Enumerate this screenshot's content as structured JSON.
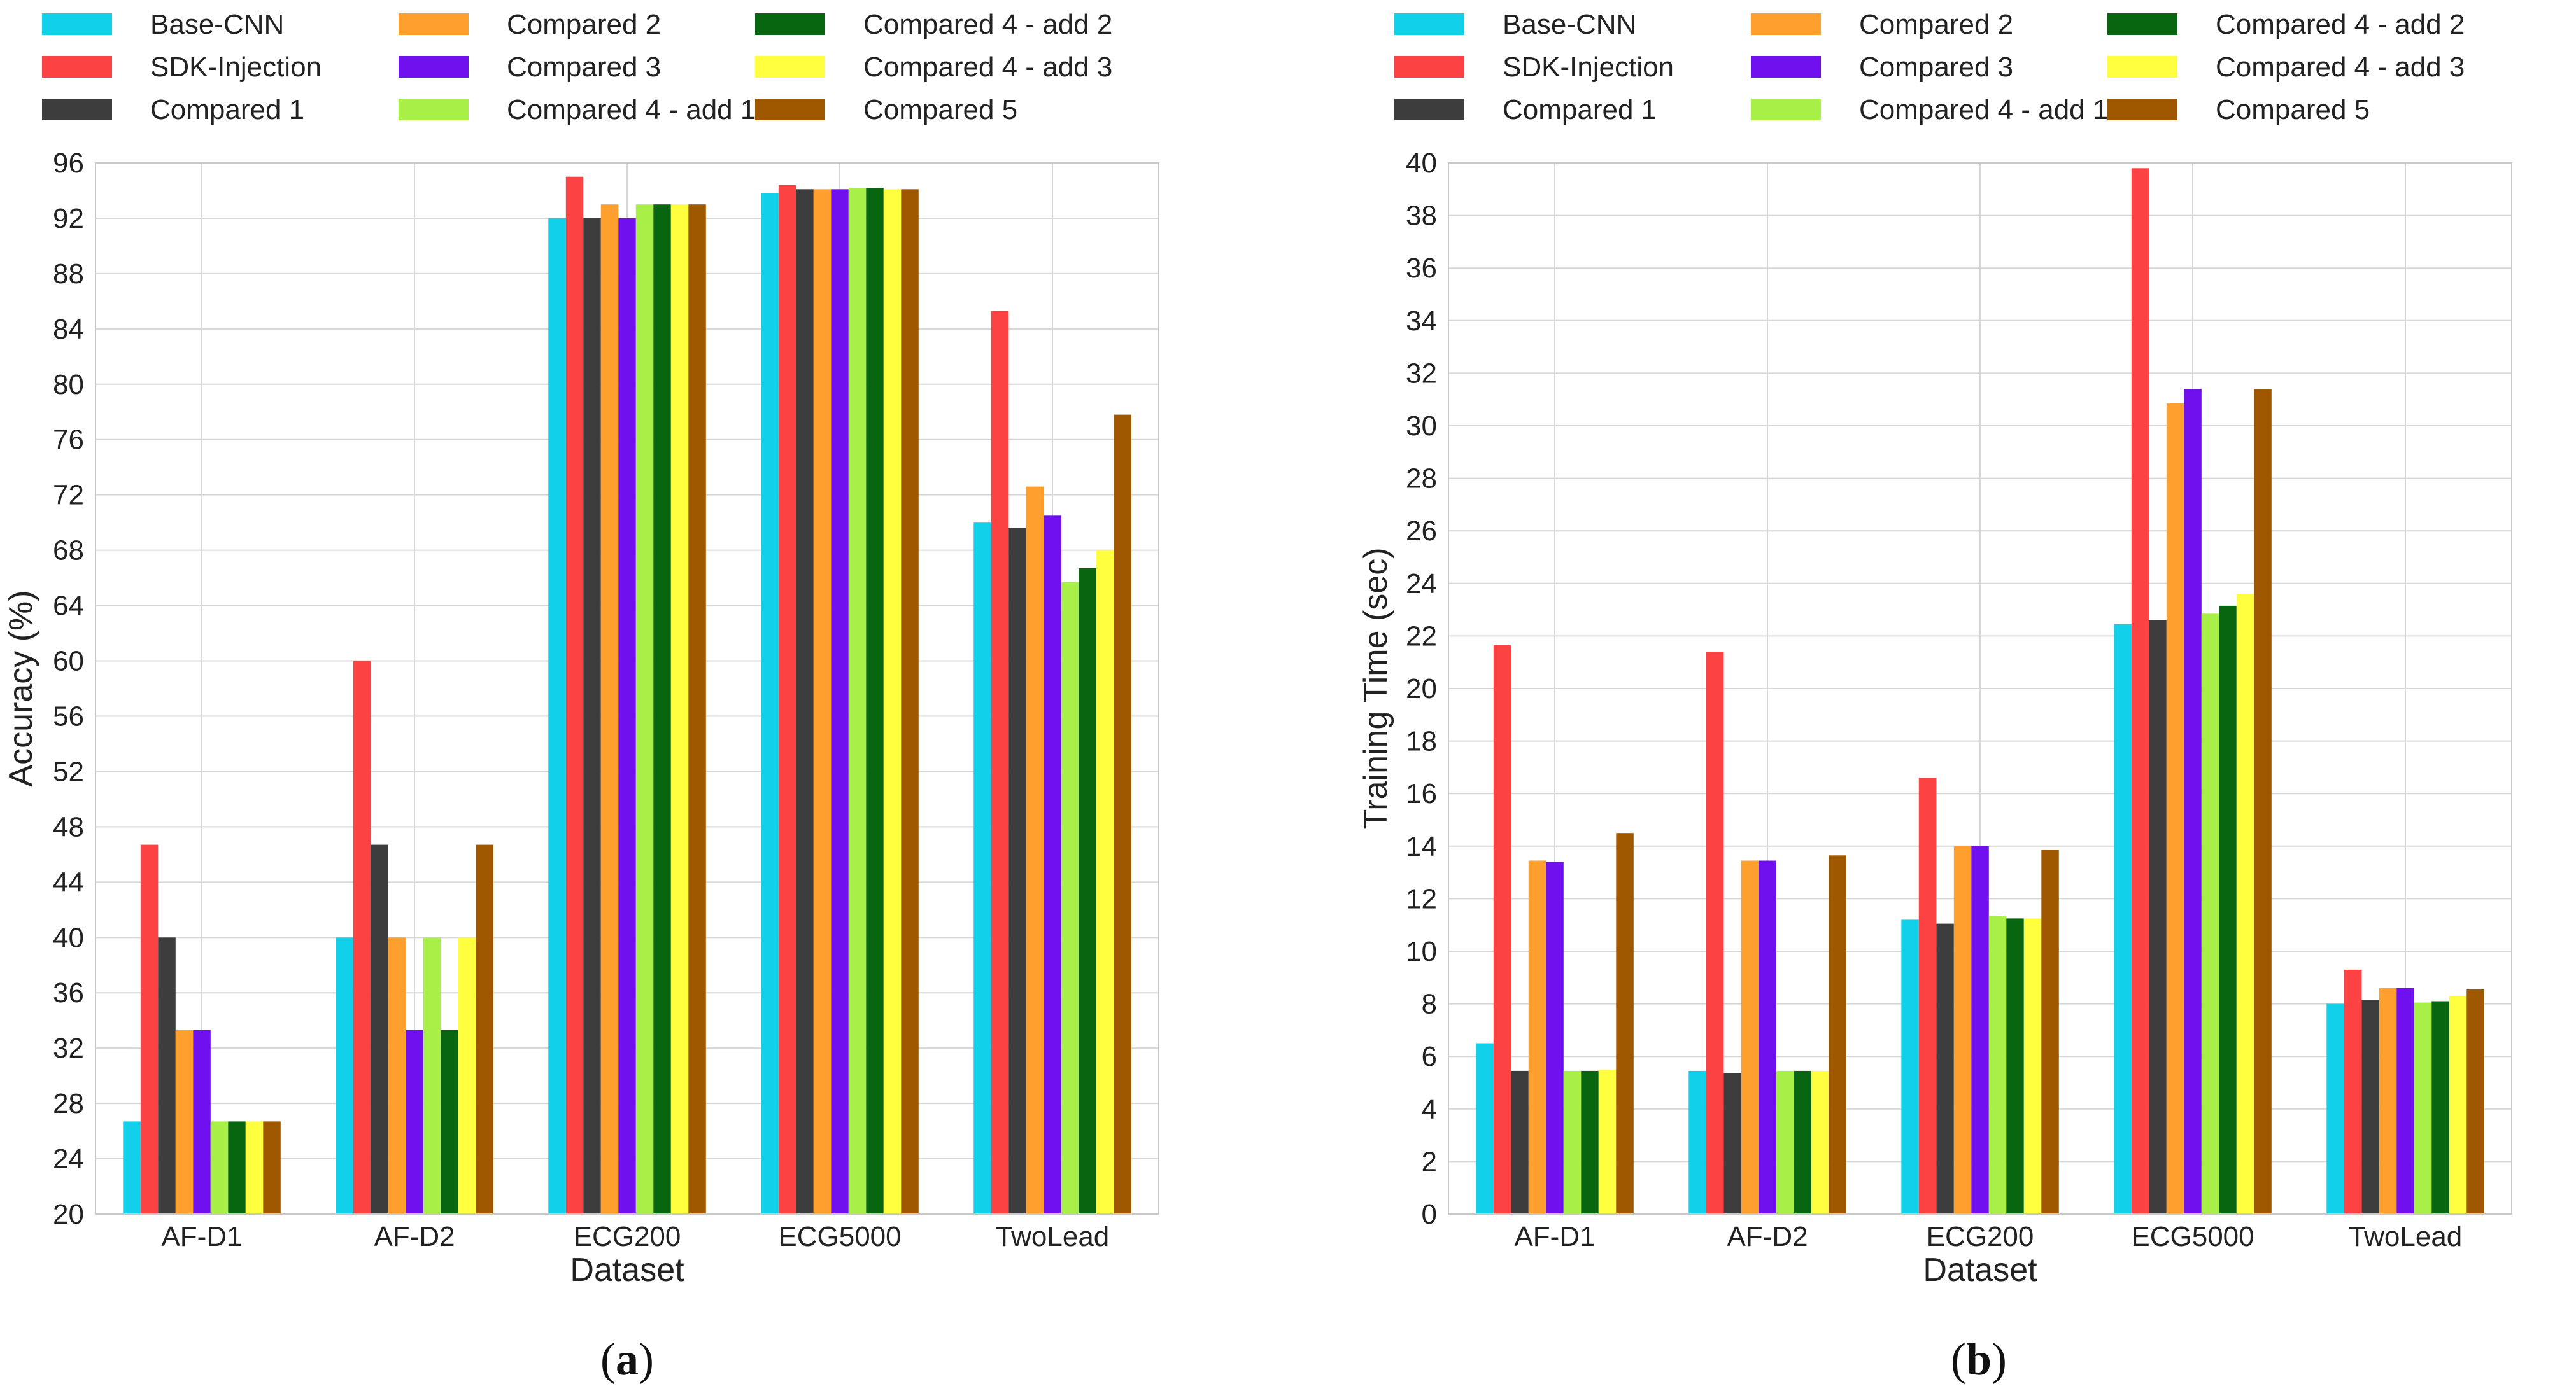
{
  "legend": [
    {
      "name": "Base-CNN",
      "color": "#11d0ea"
    },
    {
      "name": "SDK-Injection",
      "color": "#fc4242"
    },
    {
      "name": "Compared 1",
      "color": "#3d3d3d"
    },
    {
      "name": "Compared 2",
      "color": "#ff9f2e"
    },
    {
      "name": "Compared 3",
      "color": "#7010ef"
    },
    {
      "name": "Compared 4 - add 1",
      "color": "#a8f048"
    },
    {
      "name": "Compared 4 - add 2",
      "color": "#086610"
    },
    {
      "name": "Compared 4 - add 3",
      "color": "#ffff40"
    },
    {
      "name": "Compared 5",
      "color": "#a05800"
    }
  ],
  "chart_data": [
    {
      "type": "bar",
      "panel_label": "a",
      "xlabel": "Dataset",
      "ylabel": "Accuracy (%)",
      "ylim": [
        20,
        96
      ],
      "yticks": [
        20,
        24,
        28,
        32,
        36,
        40,
        44,
        48,
        52,
        56,
        60,
        64,
        68,
        72,
        76,
        80,
        84,
        88,
        92,
        96
      ],
      "grid": true,
      "legend_position": "top",
      "categories": [
        "AF-D1",
        "AF-D2",
        "ECG200",
        "ECG5000",
        "TwoLead"
      ],
      "series": [
        {
          "name": "Base-CNN",
          "values": [
            26.7,
            40.0,
            92.0,
            93.8,
            70.0
          ]
        },
        {
          "name": "SDK-Injection",
          "values": [
            46.7,
            60.0,
            95.0,
            94.4,
            85.3
          ]
        },
        {
          "name": "Compared 1",
          "values": [
            40.0,
            46.7,
            92.0,
            94.1,
            69.6
          ]
        },
        {
          "name": "Compared 2",
          "values": [
            33.3,
            40.0,
            93.0,
            94.1,
            72.6
          ]
        },
        {
          "name": "Compared 3",
          "values": [
            33.3,
            33.3,
            92.0,
            94.1,
            70.5
          ]
        },
        {
          "name": "Compared 4 - add 1",
          "values": [
            26.7,
            40.0,
            93.0,
            94.2,
            65.7
          ]
        },
        {
          "name": "Compared 4 - add 2",
          "values": [
            26.7,
            33.3,
            93.0,
            94.2,
            66.7
          ]
        },
        {
          "name": "Compared 4 - add 3",
          "values": [
            26.7,
            40.0,
            93.0,
            94.1,
            68.0
          ]
        },
        {
          "name": "Compared 5",
          "values": [
            26.7,
            46.7,
            93.0,
            94.1,
            77.8
          ]
        }
      ]
    },
    {
      "type": "bar",
      "panel_label": "b",
      "xlabel": "Dataset",
      "ylabel": "Training Time (sec)",
      "ylim": [
        0,
        40
      ],
      "yticks": [
        0,
        2,
        4,
        6,
        8,
        10,
        12,
        14,
        16,
        18,
        20,
        22,
        24,
        26,
        28,
        30,
        32,
        34,
        36,
        38,
        40
      ],
      "grid": true,
      "legend_position": "top",
      "categories": [
        "AF-D1",
        "AF-D2",
        "ECG200",
        "ECG5000",
        "TwoLead"
      ],
      "series": [
        {
          "name": "Base-CNN",
          "values": [
            6.5,
            5.45,
            11.2,
            22.45,
            8.0
          ]
        },
        {
          "name": "SDK-Injection",
          "values": [
            21.65,
            21.4,
            16.6,
            39.8,
            9.3
          ]
        },
        {
          "name": "Compared 1",
          "values": [
            5.45,
            5.35,
            11.05,
            22.6,
            8.15
          ]
        },
        {
          "name": "Compared 2",
          "values": [
            13.45,
            13.45,
            14.0,
            30.85,
            8.6
          ]
        },
        {
          "name": "Compared 3",
          "values": [
            13.4,
            13.45,
            14.0,
            31.4,
            8.6
          ]
        },
        {
          "name": "Compared 4 - add 1",
          "values": [
            5.45,
            5.45,
            11.35,
            22.85,
            8.05
          ]
        },
        {
          "name": "Compared 4 - add 2",
          "values": [
            5.45,
            5.45,
            11.25,
            23.15,
            8.1
          ]
        },
        {
          "name": "Compared 4 - add 3",
          "values": [
            5.5,
            5.45,
            11.25,
            23.6,
            8.3
          ]
        },
        {
          "name": "Compared 5",
          "values": [
            14.5,
            13.65,
            13.85,
            31.4,
            8.55
          ]
        }
      ]
    }
  ]
}
